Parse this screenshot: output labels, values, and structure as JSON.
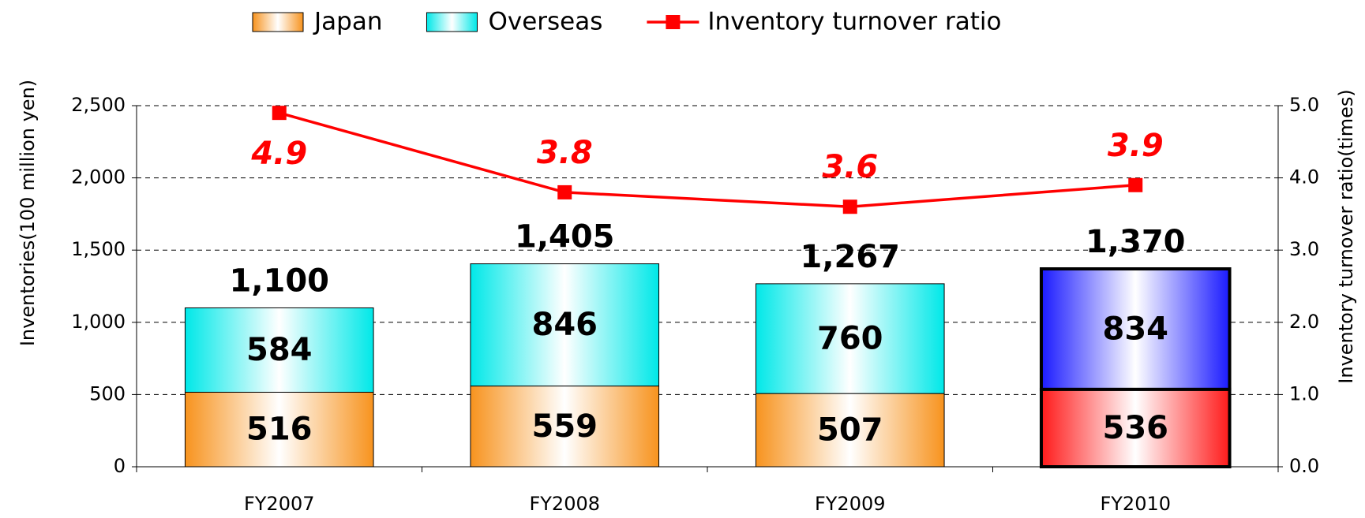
{
  "chart_data": {
    "type": "bar",
    "categories": [
      "FY2007",
      "FY2008",
      "FY2009",
      "FY2010"
    ],
    "series": [
      {
        "name": "Japan",
        "color": "#f7931e",
        "highlight_color": "#ff1a1a",
        "values": [
          516,
          559,
          507,
          536
        ]
      },
      {
        "name": "Overseas",
        "color": "#00e8e8",
        "highlight_color": "#1a1aff",
        "values": [
          584,
          846,
          760,
          834
        ]
      },
      {
        "name": "Inventory turnover ratio",
        "type": "line",
        "axis": "y2",
        "color": "#ff0000",
        "values": [
          4.9,
          3.8,
          3.6,
          3.9
        ]
      }
    ],
    "totals": {
      "values": [
        1100,
        1405,
        1267,
        1370
      ],
      "value_labels": [
        "1,100",
        "1,405",
        "1,267",
        "1,370"
      ]
    },
    "highlight_index": 3,
    "ylabel": "Inventories(100 million yen)",
    "y2label": "Inventory turnover ratio(times)",
    "ylim": [
      0,
      2500
    ],
    "yticks": [
      0,
      500,
      {
        "value": 1000,
        "label": "1,000"
      },
      {
        "value": 1500,
        "label": "1,500"
      },
      {
        "value": 2000,
        "label": "2,000"
      },
      {
        "value": 2500,
        "label": "2,500"
      }
    ],
    "y2lim": [
      0,
      5
    ],
    "y2ticks": [
      {
        "value": 0,
        "label": "0.0"
      },
      {
        "value": 1,
        "label": "1.0"
      },
      {
        "value": 2,
        "label": "2.0"
      },
      {
        "value": 3,
        "label": "3.0"
      },
      {
        "value": 4,
        "label": "4.0"
      },
      {
        "value": 5,
        "label": "5.0"
      }
    ],
    "grid": true,
    "legend": "top"
  }
}
